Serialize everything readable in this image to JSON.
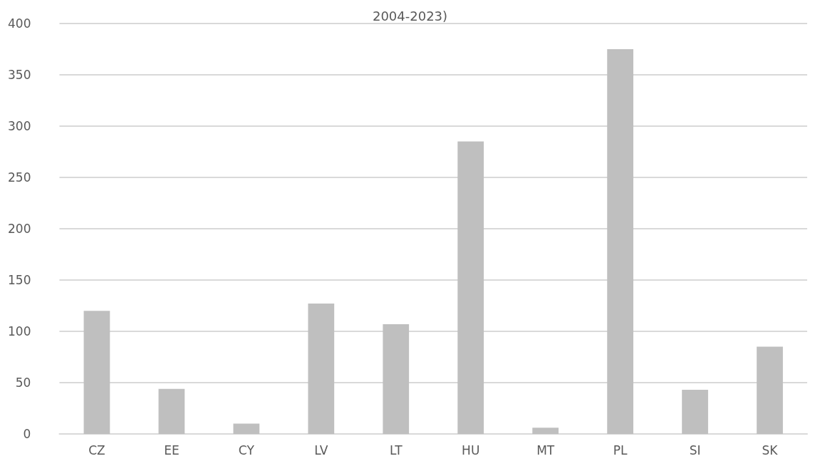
{
  "chart_data": {
    "type": "bar",
    "title": "2004-2023)",
    "categories": [
      "CZ",
      "EE",
      "CY",
      "LV",
      "LT",
      "HU",
      "MT",
      "PL",
      "SI",
      "SK"
    ],
    "values": [
      120,
      44,
      10,
      127,
      107,
      285,
      6,
      375,
      43,
      85
    ],
    "color": "#bfbfbf",
    "ylim": [
      0,
      400
    ],
    "yticks": [
      0,
      50,
      100,
      150,
      200,
      250,
      300,
      350,
      400
    ],
    "grid": "y"
  }
}
